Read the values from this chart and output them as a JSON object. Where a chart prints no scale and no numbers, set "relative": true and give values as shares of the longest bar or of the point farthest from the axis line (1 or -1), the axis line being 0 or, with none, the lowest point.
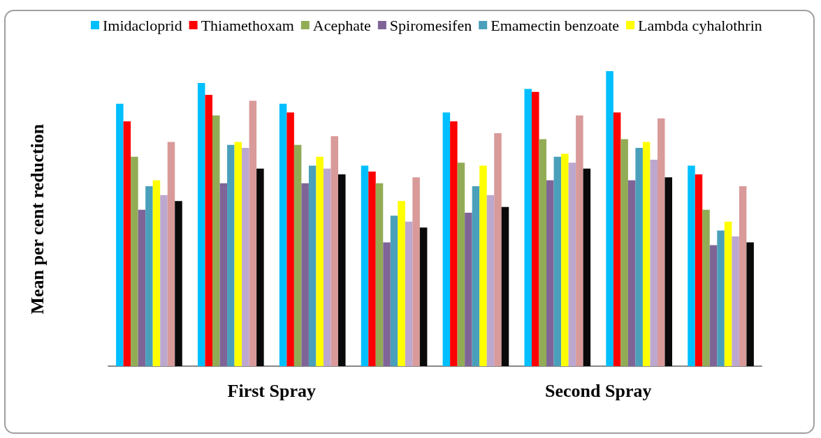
{
  "chart_data": {
    "type": "bar",
    "relative": true,
    "ylabel": "Mean per cent reduction",
    "categories": [
      null,
      null,
      null,
      null,
      null,
      null,
      null,
      null
    ],
    "annotations": [
      "First Spray",
      "Second Spray"
    ],
    "legend": "top",
    "series": [
      {
        "name": "Imidacloprid",
        "color": "#00bfff",
        "values": [
          0.89,
          0.96,
          0.89,
          0.68,
          0.86,
          0.94,
          1.0,
          0.68
        ]
      },
      {
        "name": "Thiamethoxam",
        "color": "#ff0000",
        "values": [
          0.83,
          0.92,
          0.86,
          0.66,
          0.83,
          0.93,
          0.86,
          0.65
        ]
      },
      {
        "name": "Acephate",
        "color": "#92ac56",
        "values": [
          0.71,
          0.85,
          0.75,
          0.62,
          0.69,
          0.77,
          0.77,
          0.53
        ]
      },
      {
        "name": "Spiromesifen",
        "color": "#7f6497",
        "values": [
          0.53,
          0.62,
          0.62,
          0.42,
          0.52,
          0.63,
          0.63,
          0.41
        ]
      },
      {
        "name": "Emamectin benzoate",
        "color": "#4aa0bb",
        "values": [
          0.61,
          0.75,
          0.68,
          0.51,
          0.61,
          0.71,
          0.74,
          0.46
        ]
      },
      {
        "name": "Lambda cyhalothrin",
        "color": "#ffff00",
        "values": [
          0.63,
          0.76,
          0.71,
          0.56,
          0.68,
          0.72,
          0.76,
          0.49
        ]
      },
      {
        "color": "#bca8cf",
        "values": [
          0.58,
          0.74,
          0.67,
          0.49,
          0.58,
          0.69,
          0.7,
          0.44
        ]
      },
      {
        "color": "#d99a9a",
        "values": [
          0.76,
          0.9,
          0.78,
          0.64,
          0.79,
          0.85,
          0.84,
          0.61
        ]
      },
      {
        "color": "#0a0a0a",
        "values": [
          0.56,
          0.67,
          0.65,
          0.47,
          0.54,
          0.67,
          0.64,
          0.42
        ]
      }
    ]
  }
}
